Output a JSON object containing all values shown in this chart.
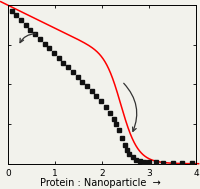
{
  "title": "",
  "xlabel": "Protein : Nanoparticle",
  "ylabel": "",
  "xlim": [
    0,
    4
  ],
  "ylim": [
    0.0,
    1.0
  ],
  "x_data": [
    0.08,
    0.18,
    0.28,
    0.38,
    0.48,
    0.58,
    0.68,
    0.78,
    0.88,
    0.98,
    1.08,
    1.18,
    1.28,
    1.38,
    1.48,
    1.58,
    1.68,
    1.78,
    1.88,
    1.98,
    2.08,
    2.18,
    2.25,
    2.3,
    2.35,
    2.42,
    2.48,
    2.52,
    2.58,
    2.65,
    2.72,
    2.8,
    2.9,
    3.0,
    3.15,
    3.3,
    3.5,
    3.7,
    3.9
  ],
  "y_data": [
    0.965,
    0.935,
    0.905,
    0.875,
    0.845,
    0.815,
    0.786,
    0.757,
    0.728,
    0.698,
    0.668,
    0.638,
    0.608,
    0.578,
    0.548,
    0.518,
    0.488,
    0.458,
    0.428,
    0.395,
    0.36,
    0.318,
    0.282,
    0.248,
    0.21,
    0.162,
    0.118,
    0.088,
    0.06,
    0.04,
    0.026,
    0.018,
    0.013,
    0.01,
    0.008,
    0.007,
    0.006,
    0.006,
    0.005
  ],
  "curve_color": "#ff0000",
  "marker_color": "#111111",
  "bg_color": "#f2f2ec",
  "tick_color": "#000000",
  "label_fontsize": 7,
  "tick_fontsize": 6.5,
  "linewidth": 1.1,
  "markersize": 2.8
}
